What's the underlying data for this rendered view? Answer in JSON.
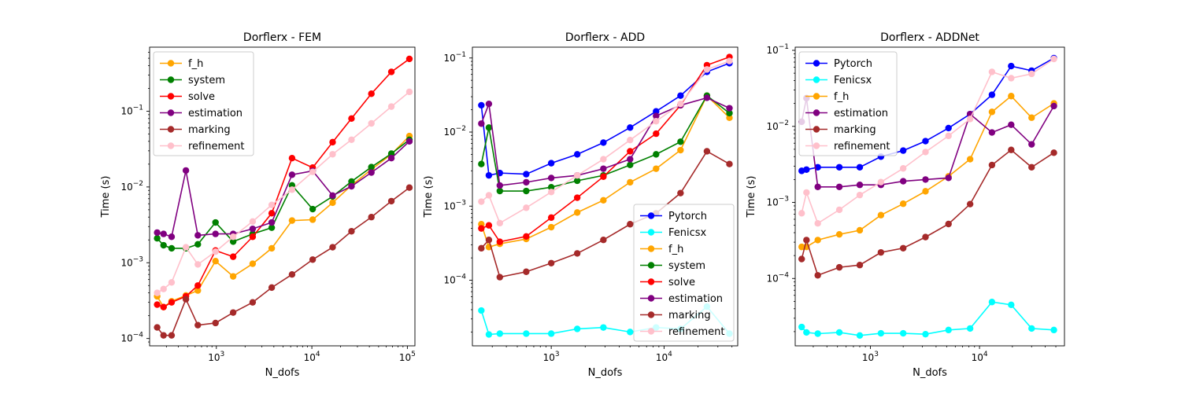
{
  "figure": {
    "background": "#ffffff"
  },
  "chart_data": [
    {
      "type": "line",
      "title": "Dorflerx - FEM",
      "xlabel": "N_dofs",
      "ylabel": "Time (s)",
      "xscale": "log",
      "yscale": "log",
      "xlim": [
        200,
        120000
      ],
      "ylim": [
        8e-05,
        0.7
      ],
      "xticks": [
        {
          "value": 1000,
          "base": "10",
          "exp": "3"
        },
        {
          "value": 10000,
          "base": "10",
          "exp": "4"
        },
        {
          "value": 100000,
          "base": "10",
          "exp": "5"
        }
      ],
      "yticks": [
        {
          "value": 0.0001,
          "base": "10",
          "exp": "−4"
        },
        {
          "value": 0.001,
          "base": "10",
          "exp": "−3"
        },
        {
          "value": 0.01,
          "base": "10",
          "exp": "−2"
        },
        {
          "value": 0.1,
          "base": "10",
          "exp": "−1"
        }
      ],
      "legend_position": "upper-left",
      "grid": false,
      "x": [
        240,
        280,
        340,
        480,
        640,
        980,
        1500,
        2400,
        3800,
        6200,
        10200,
        16500,
        26000,
        42000,
        68000,
        105000
      ],
      "series": [
        {
          "name": "f_h",
          "color": "#ffa500",
          "values": [
            0.00036,
            0.00026,
            0.00031,
            0.00037,
            0.00043,
            0.00105,
            0.00066,
            0.00097,
            0.00155,
            0.0036,
            0.0037,
            0.0062,
            0.0105,
            0.017,
            0.027,
            0.047
          ]
        },
        {
          "name": "system",
          "color": "#008000",
          "values": [
            0.0021,
            0.0017,
            0.00155,
            0.00155,
            0.00175,
            0.0034,
            0.0019,
            0.0024,
            0.0029,
            0.0105,
            0.0051,
            0.0075,
            0.0118,
            0.0183,
            0.0275,
            0.042
          ]
        },
        {
          "name": "solve",
          "color": "#ff0000",
          "values": [
            0.00028,
            0.00026,
            0.0003,
            0.00036,
            0.0005,
            0.00145,
            0.0012,
            0.0022,
            0.0045,
            0.024,
            0.018,
            0.039,
            0.08,
            0.17,
            0.33,
            0.49
          ]
        },
        {
          "name": "estimation",
          "color": "#800080",
          "values": [
            0.0025,
            0.0024,
            0.0022,
            0.0165,
            0.0023,
            0.0024,
            0.0024,
            0.0028,
            0.0034,
            0.0145,
            0.0163,
            0.0077,
            0.0102,
            0.0155,
            0.024,
            0.04
          ]
        },
        {
          "name": "marking",
          "color": "#a52a2a",
          "values": [
            0.00014,
            0.00011,
            0.00011,
            0.00033,
            0.00015,
            0.00016,
            0.00022,
            0.0003,
            0.00047,
            0.0007,
            0.0011,
            0.0016,
            0.0026,
            0.004,
            0.0065,
            0.0098
          ]
        },
        {
          "name": "refinement",
          "color": "#ffc0cb",
          "values": [
            0.0004,
            0.00045,
            0.00055,
            0.0016,
            0.00095,
            0.0014,
            0.0022,
            0.0035,
            0.0058,
            0.0092,
            0.0158,
            0.027,
            0.042,
            0.069,
            0.115,
            0.18
          ]
        }
      ]
    },
    {
      "type": "line",
      "title": "Dorflerx - ADD",
      "xlabel": "N_dofs",
      "ylabel": "Time (s)",
      "xscale": "log",
      "yscale": "log",
      "xlim": [
        200,
        45000
      ],
      "ylim": [
        1.3e-05,
        0.14
      ],
      "xticks": [
        {
          "value": 1000,
          "base": "10",
          "exp": "3"
        },
        {
          "value": 10000,
          "base": "10",
          "exp": "4"
        }
      ],
      "yticks": [
        {
          "value": 0.0001,
          "base": "10",
          "exp": "−4"
        },
        {
          "value": 0.001,
          "base": "10",
          "exp": "−3"
        },
        {
          "value": 0.01,
          "base": "10",
          "exp": "−2"
        },
        {
          "value": 0.1,
          "base": "10",
          "exp": "−1"
        }
      ],
      "legend_position": "lower-right",
      "grid": false,
      "x": [
        240,
        280,
        350,
        600,
        1000,
        1700,
        2900,
        5000,
        8500,
        14000,
        24000,
        38000
      ],
      "series": [
        {
          "name": "Pytorch",
          "color": "#0000ff",
          "values": [
            0.023,
            0.0026,
            0.0028,
            0.0027,
            0.0038,
            0.005,
            0.0072,
            0.0115,
            0.019,
            0.031,
            0.065,
            0.085
          ]
        },
        {
          "name": "Fenicsx",
          "color": "#00ffff",
          "values": [
            3.9e-05,
            1.85e-05,
            1.9e-05,
            1.9e-05,
            1.9e-05,
            2.2e-05,
            2.3e-05,
            2e-05,
            2.3e-05,
            2.2e-05,
            4.4e-05,
            1.9e-05
          ]
        },
        {
          "name": "f_h",
          "color": "#ffa500",
          "values": [
            0.00057,
            0.00028,
            0.00031,
            0.00036,
            0.00052,
            0.00082,
            0.0012,
            0.0021,
            0.0032,
            0.0057,
            0.031,
            0.0156
          ]
        },
        {
          "name": "system",
          "color": "#008000",
          "values": [
            0.0037,
            0.0115,
            0.0016,
            0.0016,
            0.0018,
            0.0022,
            0.0026,
            0.0036,
            0.005,
            0.0074,
            0.031,
            0.018
          ]
        },
        {
          "name": "solve",
          "color": "#ff0000",
          "values": [
            0.0005,
            0.00055,
            0.00033,
            0.00039,
            0.0007,
            0.0013,
            0.0025,
            0.0055,
            0.0095,
            0.023,
            0.08,
            0.103
          ]
        },
        {
          "name": "estimation",
          "color": "#800080",
          "values": [
            0.013,
            0.024,
            0.0019,
            0.0021,
            0.0024,
            0.0026,
            0.0032,
            0.0043,
            0.0165,
            0.023,
            0.029,
            0.021
          ]
        },
        {
          "name": "marking",
          "color": "#a52a2a",
          "values": [
            0.00027,
            0.00035,
            0.00011,
            0.00013,
            0.00017,
            0.00023,
            0.00035,
            0.00057,
            0.0008,
            0.0015,
            0.0055,
            0.0037
          ]
        },
        {
          "name": "refinement",
          "color": "#ffc0cb",
          "values": [
            0.00115,
            0.0014,
            0.00059,
            0.00095,
            0.00155,
            0.0026,
            0.0043,
            0.0078,
            0.014,
            0.024,
            0.07,
            0.091
          ]
        }
      ]
    },
    {
      "type": "line",
      "title": "Dorflerx - ADDNet",
      "xlabel": "N_dofs",
      "ylabel": "Time (s)",
      "xscale": "log",
      "yscale": "log",
      "xlim": [
        205,
        60000
      ],
      "ylim": [
        1.3e-05,
        0.11
      ],
      "xticks": [
        {
          "value": 1000,
          "base": "10",
          "exp": "3"
        },
        {
          "value": 10000,
          "base": "10",
          "exp": "4"
        }
      ],
      "yticks": [
        {
          "value": 0.0001,
          "base": "10",
          "exp": "−4"
        },
        {
          "value": 0.001,
          "base": "10",
          "exp": "−3"
        },
        {
          "value": 0.01,
          "base": "10",
          "exp": "−2"
        },
        {
          "value": 0.1,
          "base": "10",
          "exp": "−1"
        }
      ],
      "legend_position": "upper-left",
      "grid": false,
      "x": [
        235,
        260,
        330,
        520,
        800,
        1250,
        2000,
        3200,
        5200,
        8200,
        13000,
        19500,
        30000,
        48000
      ],
      "series": [
        {
          "name": "Pytorch",
          "color": "#0000ff",
          "values": [
            0.0026,
            0.0027,
            0.0029,
            0.0029,
            0.0029,
            0.004,
            0.0048,
            0.0064,
            0.0095,
            0.0145,
            0.026,
            0.062,
            0.054,
            0.079
          ]
        },
        {
          "name": "Fenicsx",
          "color": "#00ffff",
          "values": [
            2.3e-05,
            1.95e-05,
            1.88e-05,
            1.95e-05,
            1.78e-05,
            1.9e-05,
            1.9e-05,
            1.85e-05,
            2.1e-05,
            2.2e-05,
            4.9e-05,
            4.5e-05,
            2.2e-05,
            2.1e-05
          ]
        },
        {
          "name": "f_h",
          "color": "#ffa500",
          "values": [
            0.00026,
            0.00026,
            0.00032,
            0.00038,
            0.00043,
            0.00068,
            0.00096,
            0.0014,
            0.0022,
            0.0037,
            0.0155,
            0.025,
            0.013,
            0.02
          ]
        },
        {
          "name": "estimation",
          "color": "#800080",
          "values": [
            0.0115,
            0.0235,
            0.0016,
            0.0016,
            0.0017,
            0.0017,
            0.0019,
            0.002,
            0.0021,
            0.0145,
            0.0083,
            0.0105,
            0.0058,
            0.0185
          ]
        },
        {
          "name": "marking",
          "color": "#a52a2a",
          "values": [
            0.00018,
            0.00032,
            0.00011,
            0.00014,
            0.00015,
            0.00022,
            0.00025,
            0.00035,
            0.00052,
            0.00095,
            0.0031,
            0.0049,
            0.0029,
            0.0045
          ]
        },
        {
          "name": "refinement",
          "color": "#ffc0cb",
          "values": [
            0.00072,
            0.00135,
            0.00053,
            0.0008,
            0.00125,
            0.00185,
            0.0028,
            0.0046,
            0.0075,
            0.0125,
            0.052,
            0.043,
            0.049,
            0.077
          ]
        }
      ]
    }
  ]
}
